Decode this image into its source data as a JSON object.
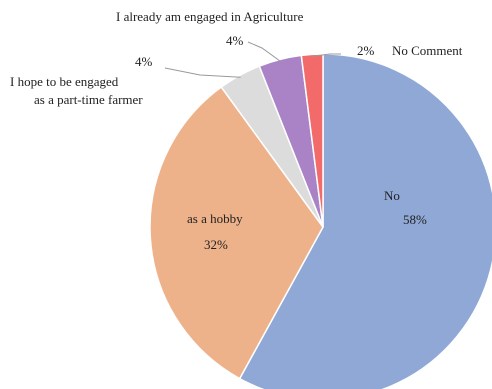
{
  "chart_data": {
    "type": "pie",
    "title": "",
    "slices": [
      {
        "label": "No",
        "value": 58,
        "value_label": "58%",
        "color": "#8FA8D6"
      },
      {
        "label": "as a hobby",
        "value": 32,
        "value_label": "32%",
        "color": "#EEB28A"
      },
      {
        "label": "I hope to be engaged as a part-time farmer",
        "label_lines": [
          "I hope to be engaged",
          "as a part-time  farmer"
        ],
        "value": 4,
        "value_label": "4%",
        "color": "#DCDCDC"
      },
      {
        "label": "I already am engaged in Agriculture",
        "value": 4,
        "value_label": "4%",
        "color": "#A983C6"
      },
      {
        "label": "No Comment",
        "value": 2,
        "value_label": "2%",
        "color": "#F26A6A"
      }
    ],
    "start_angle_deg": 0,
    "direction": "clockwise",
    "legend": "none"
  }
}
